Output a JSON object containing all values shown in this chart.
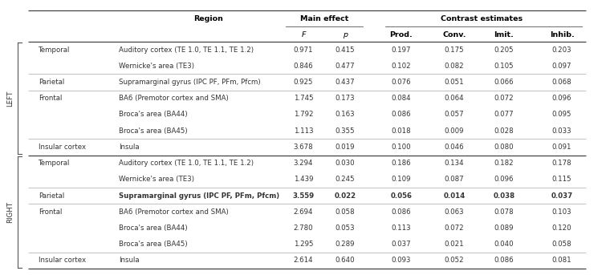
{
  "rows": [
    {
      "side": "LEFT",
      "lobe": "Temporal",
      "region": "Auditory cortex (TE 1.0, TE 1.1, TE 1.2)",
      "F": "0.971",
      "p": "0.415",
      "prod": "0.197",
      "conv": "0.175",
      "imit": "0.205",
      "inhib": "0.203",
      "bold": false,
      "lobe_show": true
    },
    {
      "side": "LEFT",
      "lobe": "Temporal",
      "region": "Wernicke's area (TE3)",
      "F": "0.846",
      "p": "0.477",
      "prod": "0.102",
      "conv": "0.082",
      "imit": "0.105",
      "inhib": "0.097",
      "bold": false,
      "lobe_show": false
    },
    {
      "side": "LEFT",
      "lobe": "Parietal",
      "region": "Supramarginal gyrus (IPC PF, PFm, Pfcm)",
      "F": "0.925",
      "p": "0.437",
      "prod": "0.076",
      "conv": "0.051",
      "imit": "0.066",
      "inhib": "0.068",
      "bold": false,
      "lobe_show": true
    },
    {
      "side": "LEFT",
      "lobe": "Frontal",
      "region": "BA6 (Premotor cortex and SMA)",
      "F": "1.745",
      "p": "0.173",
      "prod": "0.084",
      "conv": "0.064",
      "imit": "0.072",
      "inhib": "0.096",
      "bold": false,
      "lobe_show": true
    },
    {
      "side": "LEFT",
      "lobe": "Frontal",
      "region": "Broca's area (BA44)",
      "F": "1.792",
      "p": "0.163",
      "prod": "0.086",
      "conv": "0.057",
      "imit": "0.077",
      "inhib": "0.095",
      "bold": false,
      "lobe_show": false
    },
    {
      "side": "LEFT",
      "lobe": "Frontal",
      "region": "Broca's area (BA45)",
      "F": "1.113",
      "p": "0.355",
      "prod": "0.018",
      "conv": "0.009",
      "imit": "0.028",
      "inhib": "0.033",
      "bold": false,
      "lobe_show": false
    },
    {
      "side": "LEFT",
      "lobe": "Insular cortex",
      "region": "Insula",
      "F": "3.678",
      "p": "0.019",
      "prod": "0.100",
      "conv": "0.046",
      "imit": "0.080",
      "inhib": "0.091",
      "bold": false,
      "lobe_show": true
    },
    {
      "side": "RIGHT",
      "lobe": "Temporal",
      "region": "Auditory cortex (TE 1.0, TE 1.1, TE 1.2)",
      "F": "3.294",
      "p": "0.030",
      "prod": "0.186",
      "conv": "0.134",
      "imit": "0.182",
      "inhib": "0.178",
      "bold": false,
      "lobe_show": true
    },
    {
      "side": "RIGHT",
      "lobe": "Temporal",
      "region": "Wernicke's area (TE3)",
      "F": "1.439",
      "p": "0.245",
      "prod": "0.109",
      "conv": "0.087",
      "imit": "0.096",
      "inhib": "0.115",
      "bold": false,
      "lobe_show": false
    },
    {
      "side": "RIGHT",
      "lobe": "Parietal",
      "region": "Supramarginal gyrus (IPC PF, PFm, Pfcm)",
      "F": "3.559",
      "p": "0.022",
      "prod": "0.056",
      "conv": "0.014",
      "imit": "0.038",
      "inhib": "0.037",
      "bold": true,
      "lobe_show": true
    },
    {
      "side": "RIGHT",
      "lobe": "Frontal",
      "region": "BA6 (Premotor cortex and SMA)",
      "F": "2.694",
      "p": "0.058",
      "prod": "0.086",
      "conv": "0.063",
      "imit": "0.078",
      "inhib": "0.103",
      "bold": false,
      "lobe_show": true
    },
    {
      "side": "RIGHT",
      "lobe": "Frontal",
      "region": "Broca's area (BA44)",
      "F": "2.780",
      "p": "0.053",
      "prod": "0.113",
      "conv": "0.072",
      "imit": "0.089",
      "inhib": "0.120",
      "bold": false,
      "lobe_show": false
    },
    {
      "side": "RIGHT",
      "lobe": "Frontal",
      "region": "Broca's area (BA45)",
      "F": "1.295",
      "p": "0.289",
      "prod": "0.037",
      "conv": "0.021",
      "imit": "0.040",
      "inhib": "0.058",
      "bold": false,
      "lobe_show": false
    },
    {
      "side": "RIGHT",
      "lobe": "Insular cortex",
      "region": "Insula",
      "F": "2.614",
      "p": "0.640",
      "prod": "0.093",
      "conv": "0.052",
      "imit": "0.086",
      "inhib": "0.081",
      "bold": false,
      "lobe_show": true
    }
  ],
  "background_color": "#ffffff",
  "text_color": "#333333",
  "header_color": "#000000",
  "font_size": 6.2,
  "header_font_size": 6.8
}
